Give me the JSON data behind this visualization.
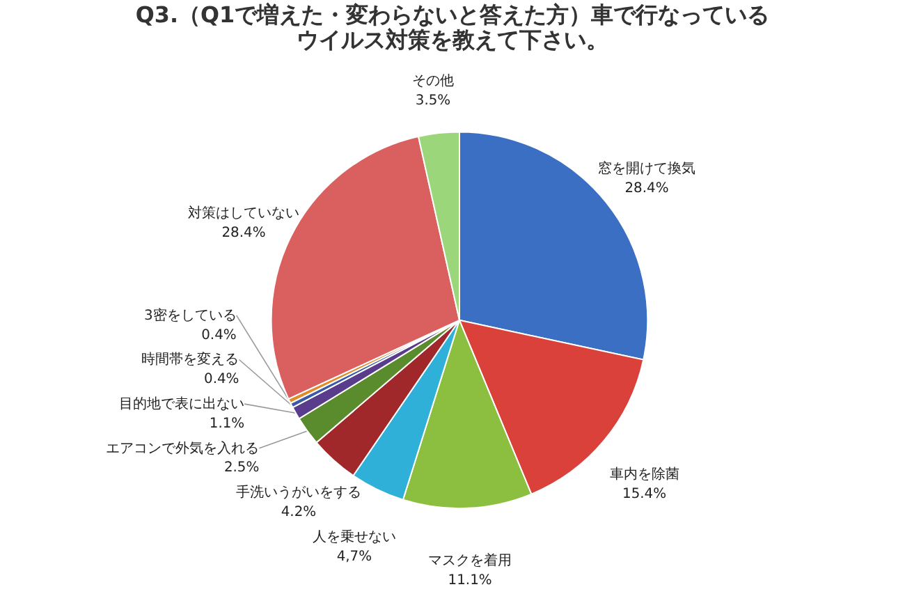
{
  "chart_data": {
    "type": "pie",
    "title": [
      "Q3.（Q1で増えた・変わらないと答えた方）車で行なっている",
      "ウイルス対策を教えて下さい。"
    ],
    "categories": [
      "窓を開けて換気",
      "車内を除菌",
      "マスクを着用",
      "人を乗せない",
      "手洗いうがいをする",
      "エアコンで外気を入れる",
      "目的地で表に出ない",
      "時間帯を変える",
      "3密をしている",
      "対策はしていない",
      "その他"
    ],
    "values": [
      28.4,
      15.4,
      11.1,
      4.7,
      4.2,
      2.5,
      1.1,
      0.4,
      0.4,
      28.4,
      3.5
    ],
    "value_labels": [
      "28.4%",
      "15.4%",
      "11.1%",
      "4,7%",
      "4.2%",
      "2.5%",
      "1.1%",
      "0.4%",
      "0.4%",
      "28.4%",
      "3.5%"
    ],
    "colors": [
      "#3a6fc4",
      "#d9413a",
      "#8cbf3f",
      "#2fb0d8",
      "#a0282a",
      "#5a8c2e",
      "#5a3c8c",
      "#3a5aa8",
      "#e08a2a",
      "#d9605e",
      "#9cd67a"
    ]
  }
}
